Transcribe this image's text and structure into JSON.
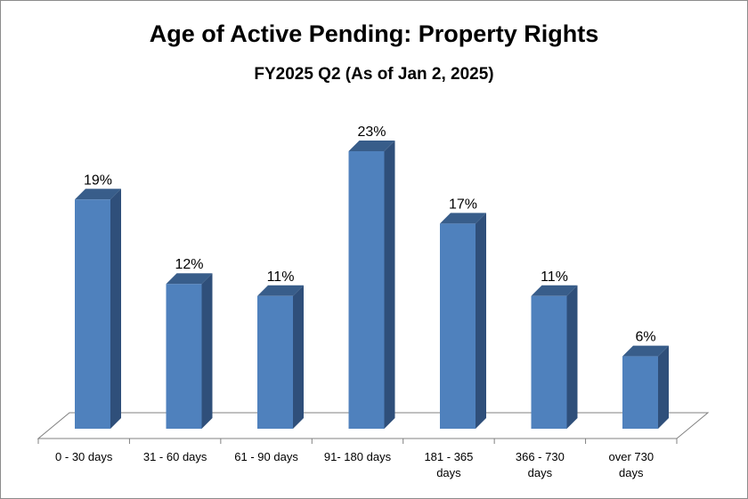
{
  "chart_data": {
    "type": "bar",
    "title": "Age of Active Pending: Property Rights",
    "subtitle": "FY2025 Q2 (As of Jan 2, 2025)",
    "categories": [
      [
        "0 - 30 days"
      ],
      [
        "31 - 60 days"
      ],
      [
        "61 - 90 days"
      ],
      [
        "91- 180 days"
      ],
      [
        "181 - 365",
        "days"
      ],
      [
        "366 - 730",
        "days"
      ],
      [
        "over 730",
        "days"
      ]
    ],
    "values": [
      19,
      12,
      11,
      23,
      17,
      11,
      6
    ],
    "data_labels": [
      "19%",
      "12%",
      "11%",
      "23%",
      "17%",
      "11%",
      "6%"
    ],
    "unit": "%",
    "ylim": [
      0,
      25
    ],
    "grid": false,
    "legend": "none",
    "colors": {
      "bar_front": "#4f81bd",
      "bar_side": "#2f4f7a",
      "bar_top": "#385d8a",
      "floor": "#808080"
    }
  }
}
